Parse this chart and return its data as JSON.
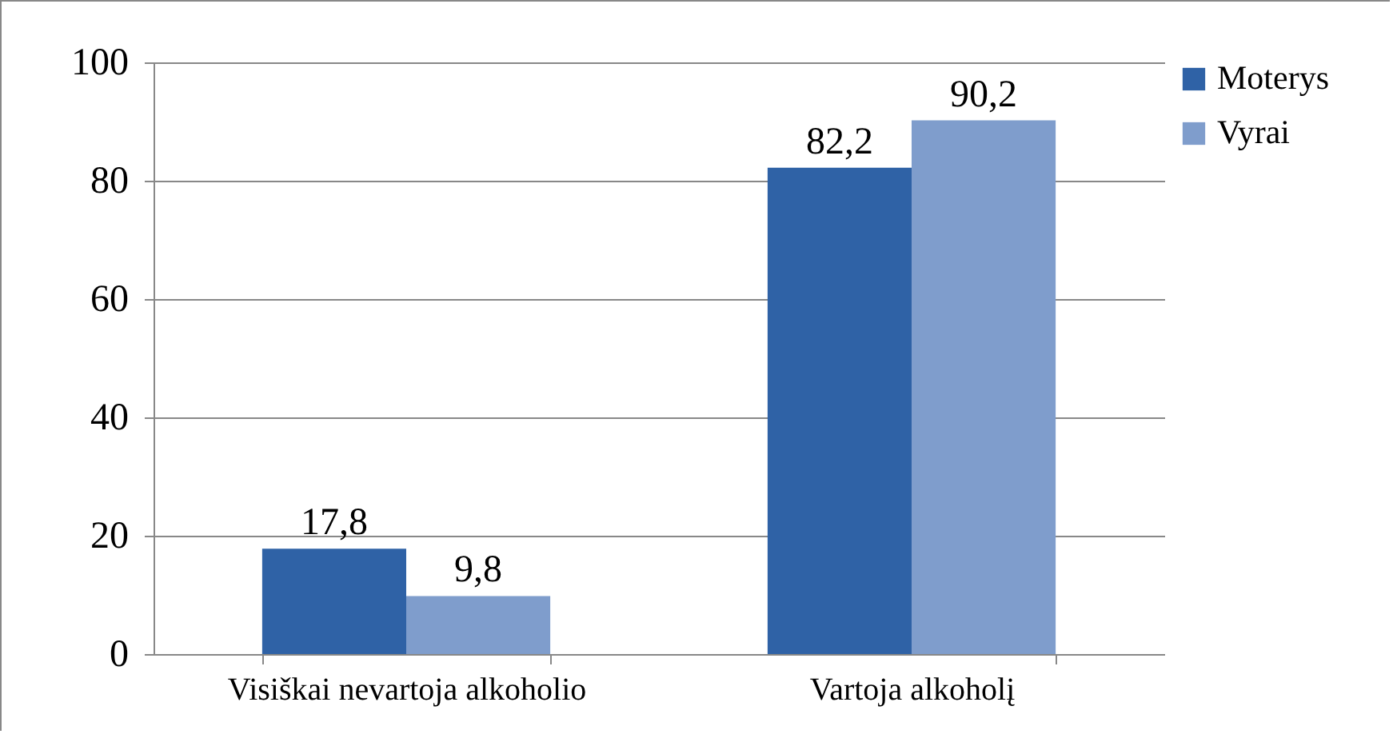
{
  "chart_data": {
    "type": "bar",
    "categories": [
      "Visiškai nevartoja alkoholio",
      "Vartoja alkoholį"
    ],
    "series": [
      {
        "name": "Moterys",
        "color": "#2f62a6",
        "values": [
          17.8,
          82.2
        ],
        "value_labels": [
          "17,8",
          "82,2"
        ]
      },
      {
        "name": "Vyrai",
        "color": "#7f9dcc",
        "values": [
          9.8,
          90.2
        ],
        "value_labels": [
          "9,8",
          "90,2"
        ]
      }
    ],
    "ylim": [
      0,
      100
    ],
    "yticks": [
      0,
      20,
      40,
      60,
      80,
      100
    ],
    "grid": "y",
    "legend": "right"
  }
}
